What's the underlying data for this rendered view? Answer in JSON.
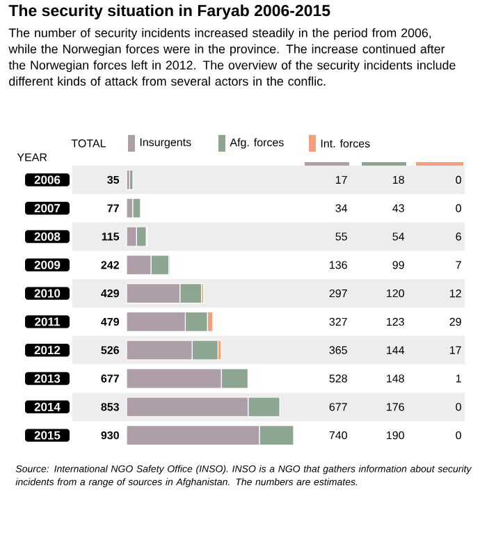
{
  "chart_data": {
    "type": "bar",
    "orientation": "horizontal",
    "stacked": true,
    "title": "The security situation in Faryab 2006-2015",
    "subtitle": "The number of security incidents increased steadily in the period from 2006, while the Norwegian forces were in the province. The increase continued after the Norwegian forces left in 2012. The overview of the security incidents include different kinds of attack from several actors in the conflic.",
    "ylabel": "YEAR",
    "categories": [
      "2006",
      "2007",
      "2008",
      "2009",
      "2010",
      "2011",
      "2012",
      "2013",
      "2014",
      "2015"
    ],
    "series": [
      {
        "name": "Insurgents",
        "color": "#ae9ea8",
        "values": [
          17,
          34,
          55,
          136,
          297,
          327,
          365,
          528,
          677,
          740
        ]
      },
      {
        "name": "Afg. forces",
        "color": "#8ea592",
        "values": [
          18,
          43,
          54,
          99,
          120,
          123,
          144,
          148,
          176,
          190
        ]
      },
      {
        "name": "Int. forces",
        "color": "#f4a07e",
        "values": [
          0,
          0,
          6,
          7,
          12,
          29,
          17,
          1,
          0,
          0
        ]
      }
    ],
    "totals": [
      "35",
      "77",
      "115",
      "242",
      "429",
      "479",
      "526",
      "677",
      "853",
      "930"
    ],
    "data_labels": true,
    "legend": "top",
    "tick_labels": "y",
    "annotations": [
      "TOTAL",
      "Source: International NGO Safety Office (INSO). INSO is a NGO that gathers information about security incidents from a range of sources in Afghanistan. The numbers are estimates."
    ]
  }
}
